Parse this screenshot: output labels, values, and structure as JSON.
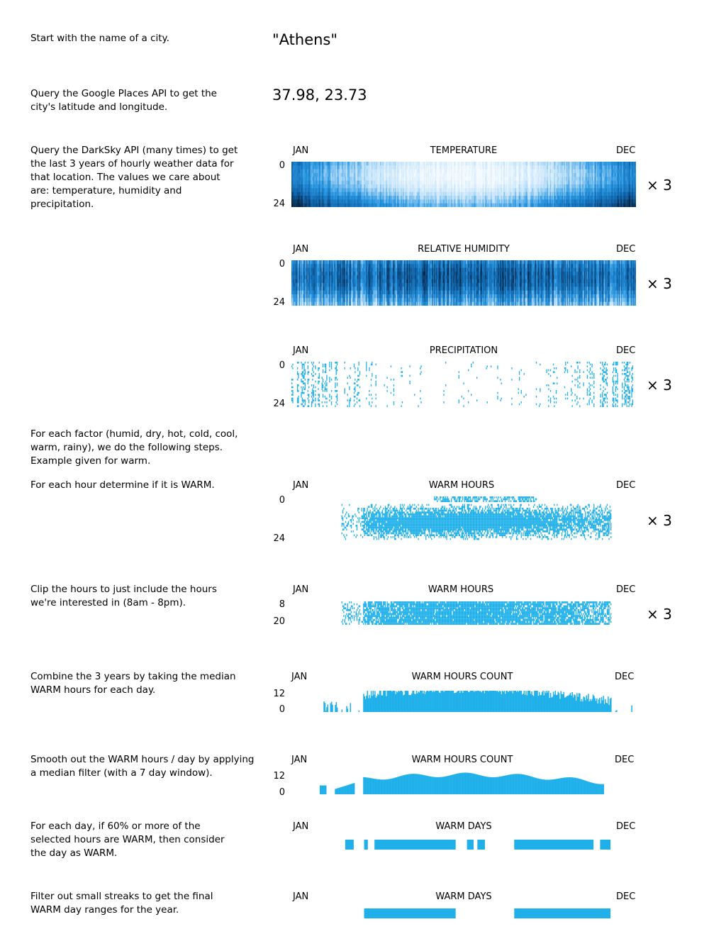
{
  "colors": {
    "accent": "#1fb0ea",
    "dark": "#062a47",
    "mid": "#1a7cc6",
    "light": "#cfe9fb"
  },
  "city": "\"Athens\"",
  "coords": "37.98, 23.73",
  "multiplier": "× 3",
  "month_start": "JAN",
  "month_end": "DEC",
  "steps": [
    {
      "id": "city",
      "text": "Start with the name of a city."
    },
    {
      "id": "places",
      "text": "Query the Google Places API to get the\ncity's latitude and longitude."
    },
    {
      "id": "darksky",
      "text": "Query the DarkSky API (many times) to get\nthe last 3 years of hourly weather data for\nthat location. The values we care about\nare: temperature, humidity and\nprecipitation."
    },
    {
      "id": "factors",
      "text": "For each factor (humid, dry, hot, cold, cool,\nwarm, rainy), we do the following steps.\nExample given for warm."
    },
    {
      "id": "determine",
      "text": "For each hour determine if it is WARM."
    },
    {
      "id": "clip",
      "text": "Clip the hours to just include the hours\nwe're interested in (8am - 8pm)."
    },
    {
      "id": "combine",
      "text": "Combine the 3 years by taking the median\nWARM hours for each day."
    },
    {
      "id": "smooth",
      "text": "Smooth out the WARM hours / day by applying\na median filter (with a 7 day window)."
    },
    {
      "id": "threshold",
      "text": "For each day, if 60% or more of the\nselected hours are WARM, then consider\nthe day as WARM."
    },
    {
      "id": "filter",
      "text": "Filter out small streaks to get the final\nWARM day ranges for the year."
    }
  ],
  "charts": [
    {
      "id": "temperature",
      "title": "TEMPERATURE",
      "y_top": "0",
      "y_bottom": "24"
    },
    {
      "id": "humidity",
      "title": "RELATIVE HUMIDITY",
      "y_top": "0",
      "y_bottom": "24"
    },
    {
      "id": "precipitation",
      "title": "PRECIPITATION",
      "y_top": "0",
      "y_bottom": "24"
    },
    {
      "id": "warm_hours",
      "title": "WARM HOURS",
      "y_top": "0",
      "y_bottom": "24"
    },
    {
      "id": "warm_hours_clipped",
      "title": "WARM HOURS",
      "y_top": "8",
      "y_bottom": "20"
    },
    {
      "id": "warm_count",
      "title": "WARM HOURS COUNT",
      "y_top": "12",
      "y_bottom": "0"
    },
    {
      "id": "warm_count_smoothed",
      "title": "WARM HOURS COUNT",
      "y_top": "12",
      "y_bottom": "0"
    },
    {
      "id": "warm_days",
      "title": "WARM DAYS"
    },
    {
      "id": "warm_days_final",
      "title": "WARM DAYS"
    }
  ],
  "chart_data": [
    {
      "type": "heatmap",
      "title": "TEMPERATURE",
      "xlabel": "",
      "ylabel": "",
      "x": [
        "JAN",
        "DEC"
      ],
      "y": [
        "0",
        "24"
      ],
      "description_values": "hourly temperature, day of year vs hour"
    },
    {
      "type": "heatmap",
      "title": "RELATIVE HUMIDITY",
      "x": [
        "JAN",
        "DEC"
      ],
      "y": [
        "0",
        "24"
      ]
    },
    {
      "type": "heatmap",
      "title": "PRECIPITATION",
      "x": [
        "JAN",
        "DEC"
      ],
      "y": [
        "0",
        "24"
      ]
    },
    {
      "type": "heatmap",
      "title": "WARM HOURS",
      "x": [
        "JAN",
        "DEC"
      ],
      "y": [
        "0",
        "24"
      ]
    },
    {
      "type": "heatmap",
      "title": "WARM HOURS",
      "x": [
        "JAN",
        "DEC"
      ],
      "y": [
        "8",
        "20"
      ]
    },
    {
      "type": "bar",
      "title": "WARM HOURS COUNT",
      "x": [
        "JAN",
        "DEC"
      ],
      "ylim": [
        0,
        12
      ]
    },
    {
      "type": "bar",
      "title": "WARM HOURS COUNT",
      "x": [
        "JAN",
        "DEC"
      ],
      "ylim": [
        0,
        12
      ]
    },
    {
      "type": "bar",
      "title": "WARM DAYS",
      "x_range": [
        "JAN",
        "DEC"
      ],
      "ranges_day_of_year": [
        [
          57,
          66
        ],
        [
          77,
          81
        ],
        [
          88,
          174
        ],
        [
          186,
          193
        ],
        [
          197,
          205
        ],
        [
          236,
          320
        ],
        [
          327,
          338
        ]
      ]
    },
    {
      "type": "bar",
      "title": "WARM DAYS",
      "x_range": [
        "JAN",
        "DEC"
      ],
      "ranges_day_of_year": [
        [
          77,
          174
        ],
        [
          236,
          338
        ]
      ]
    }
  ]
}
